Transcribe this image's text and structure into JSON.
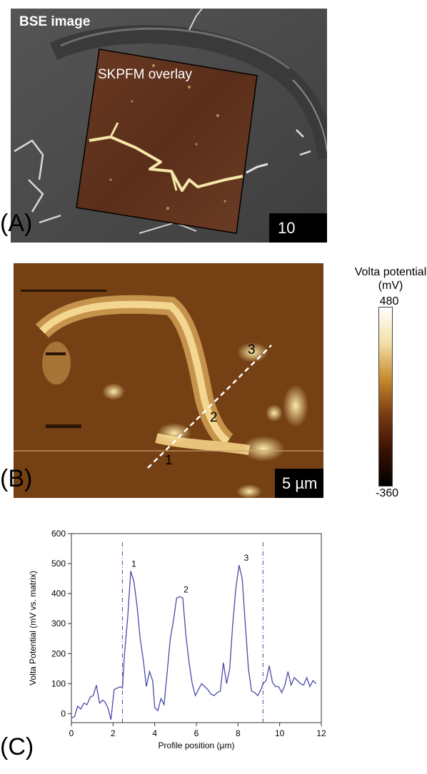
{
  "panelA": {
    "letter": "(A)",
    "bse_label": "BSE image",
    "overlay_label": "SKPFM overlay",
    "scalebar": "10"
  },
  "panelB": {
    "letter": "(B)",
    "scalebar": "5 µm",
    "markers": [
      "1",
      "2",
      "3"
    ]
  },
  "colorbar": {
    "title_line1": "Volta potential",
    "title_line2": "(mV)",
    "max": "480",
    "min": "-360",
    "colors": [
      "#ffffff",
      "#f2dfa6",
      "#c68a2e",
      "#7a3a10",
      "#3a1204",
      "#000000"
    ]
  },
  "panelC": {
    "letter": "(C)"
  },
  "chart_data": {
    "type": "line",
    "title": "",
    "xlabel": "Profile position (μm)",
    "ylabel": "Volta Potential  (mV vs. matrix)",
    "xlim": [
      0,
      12
    ],
    "ylim": [
      -30,
      600
    ],
    "xticks": [
      0,
      2,
      4,
      6,
      8,
      10,
      12
    ],
    "yticks": [
      0,
      100,
      200,
      300,
      400,
      500,
      600
    ],
    "line_color": "#4a4aa8",
    "vlines": [
      2.45,
      9.2
    ],
    "peak_labels": [
      {
        "label": "1",
        "x": 3.0,
        "y": 475
      },
      {
        "label": "2",
        "x": 5.5,
        "y": 390
      },
      {
        "label": "3",
        "x": 8.4,
        "y": 495
      }
    ],
    "series": [
      {
        "x": [
          0,
          0.15,
          0.3,
          0.45,
          0.6,
          0.75,
          0.9,
          1.05,
          1.2,
          1.35,
          1.5,
          1.6,
          1.75,
          1.9,
          2.05,
          2.2,
          2.35,
          2.45,
          2.55,
          2.7,
          2.85,
          3.0,
          3.15,
          3.3,
          3.45,
          3.6,
          3.75,
          3.9,
          4.0,
          4.15,
          4.3,
          4.45,
          4.6,
          4.75,
          4.9,
          5.05,
          5.2,
          5.35,
          5.5,
          5.65,
          5.8,
          5.95,
          6.1,
          6.25,
          6.4,
          6.55,
          6.7,
          6.85,
          7.0,
          7.15,
          7.3,
          7.45,
          7.6,
          7.75,
          7.9,
          8.05,
          8.2,
          8.35,
          8.5,
          8.65,
          8.8,
          8.95,
          9.1,
          9.2,
          9.35,
          9.5,
          9.65,
          9.8,
          9.95,
          10.1,
          10.25,
          10.4,
          10.55,
          10.7,
          10.85,
          11.0,
          11.15,
          11.3,
          11.45,
          11.6,
          11.75
        ],
        "y": [
          -15,
          -10,
          25,
          15,
          35,
          30,
          55,
          60,
          95,
          35,
          45,
          40,
          20,
          -20,
          80,
          85,
          90,
          85,
          200,
          320,
          475,
          440,
          360,
          250,
          180,
          90,
          140,
          110,
          20,
          10,
          50,
          30,
          140,
          250,
          310,
          385,
          390,
          385,
          260,
          170,
          100,
          60,
          80,
          100,
          90,
          80,
          65,
          60,
          70,
          75,
          170,
          100,
          150,
          300,
          420,
          495,
          450,
          300,
          150,
          75,
          70,
          60,
          80,
          100,
          110,
          160,
          105,
          90,
          90,
          70,
          95,
          140,
          95,
          120,
          110,
          100,
          95,
          120,
          90,
          110,
          100
        ]
      }
    ]
  }
}
